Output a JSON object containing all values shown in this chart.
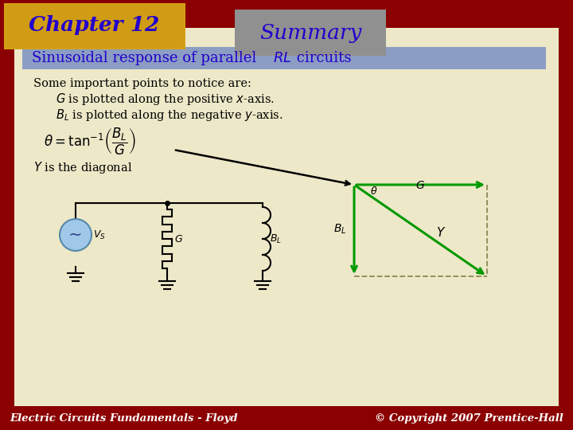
{
  "title": "Summary",
  "chapter": "Chapter 12",
  "subtitle_plain": "Sinusoidal response of parallel ",
  "subtitle_italic": "RL",
  "subtitle_end": " circuits",
  "body_bg": "#EDE8C8",
  "border_bg": "#8B0000",
  "chapter_bg": "#D4A017",
  "summary_bg": "#909090",
  "subtitle_bg": "#8B9DC3",
  "title_color": "#2200CC",
  "body_text_color": "#000000",
  "footer_text": "Electric Circuits Fundamentals - Floyd",
  "copyright_text": "© Copyright 2007 Prentice-Hall",
  "green_color": "#009900",
  "footer_bg": "#8B0000",
  "footer_text_color": "#FFFFFF"
}
